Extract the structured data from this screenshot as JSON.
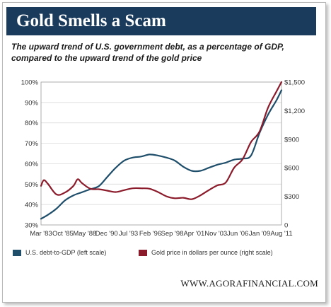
{
  "banner": {
    "title": "Gold Smells a Scam"
  },
  "subtitle": "The upward trend of U.S. government debt, as a percentage of GDP, compared to the upward trend of the gold price",
  "footer": {
    "website": "WWW.AGORAFINANCIAL.COM"
  },
  "colors": {
    "banner_bg": "#1b3b5c",
    "debt_series": "#1f4e6b",
    "gold_series": "#8b1a2a"
  },
  "chart_data": {
    "type": "line",
    "x_tick_labels": [
      "Mar '83",
      "Oct '85",
      "May '88",
      "Dec '90",
      "Jul '93",
      "Feb '96",
      "Sep '98",
      "Apr '01",
      "Nov '03",
      "Jun '06",
      "Jan '09",
      "Aug '11"
    ],
    "left_axis": {
      "range": [
        30,
        100
      ],
      "tick_labels": [
        "100%",
        "90%",
        "80%",
        "70%",
        "60%",
        "50%",
        "40%",
        "30%"
      ],
      "tick_values": [
        100,
        90,
        80,
        70,
        60,
        50,
        40,
        30
      ]
    },
    "right_axis": {
      "range": [
        0,
        1500
      ],
      "tick_labels": [
        "$1,500",
        "$1,200",
        "$900",
        "$600",
        "$300",
        "0"
      ],
      "tick_values": [
        1500,
        1200,
        900,
        600,
        300,
        0
      ]
    },
    "grid": true,
    "legend_position": "bottom",
    "series": [
      {
        "name": "U.S. debt-to-GDP (left scale)",
        "axis": "left",
        "x": [
          1983.17,
          1984.0,
          1985.0,
          1986.0,
          1987.0,
          1988.0,
          1989.0,
          1990.0,
          1991.0,
          1992.0,
          1993.0,
          1994.0,
          1995.0,
          1996.0,
          1997.0,
          1998.0,
          1999.0,
          2000.0,
          2001.0,
          2002.0,
          2003.0,
          2004.0,
          2005.0,
          2006.0,
          2007.0,
          2008.0,
          2009.0,
          2010.0,
          2011.0,
          2011.6
        ],
        "y": [
          33,
          35,
          38,
          42,
          44.5,
          46,
          47.5,
          49,
          53.5,
          58,
          61.5,
          63,
          63.5,
          64.5,
          64,
          63,
          61.5,
          58.5,
          56.5,
          56.5,
          58,
          59.5,
          60.5,
          62,
          62.5,
          64,
          75,
          84,
          91,
          96
        ]
      },
      {
        "name": "Gold price in dollars per ounce (right scale)",
        "axis": "right",
        "x": [
          1983.17,
          1983.5,
          1984.0,
          1985.0,
          1986.0,
          1987.0,
          1987.5,
          1988.0,
          1989.0,
          1990.0,
          1991.0,
          1992.0,
          1993.0,
          1994.0,
          1995.0,
          1996.0,
          1997.0,
          1998.0,
          1999.0,
          2000.0,
          2001.0,
          2002.0,
          2003.0,
          2004.0,
          2005.0,
          2006.0,
          2007.0,
          2008.0,
          2009.0,
          2010.0,
          2011.0,
          2011.6
        ],
        "y": [
          410,
          470,
          430,
          320,
          340,
          410,
          480,
          440,
          380,
          375,
          360,
          345,
          365,
          385,
          385,
          380,
          345,
          300,
          280,
          285,
          270,
          310,
          365,
          415,
          445,
          600,
          690,
          870,
          980,
          1230,
          1400,
          1530
        ]
      }
    ]
  }
}
